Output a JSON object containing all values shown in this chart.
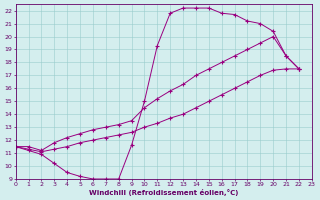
{
  "xlabel": "Windchill (Refroidissement éolien,°C)",
  "background_color": "#d4eeee",
  "line_color": "#990080",
  "xlim": [
    0,
    23
  ],
  "ylim": [
    9,
    22.5
  ],
  "xticks": [
    0,
    1,
    2,
    3,
    4,
    5,
    6,
    7,
    8,
    9,
    10,
    11,
    12,
    13,
    14,
    15,
    16,
    17,
    18,
    19,
    20,
    21,
    22,
    23
  ],
  "yticks": [
    9,
    10,
    11,
    12,
    13,
    14,
    15,
    16,
    17,
    18,
    19,
    20,
    21,
    22
  ],
  "curve1_x": [
    0,
    1,
    2,
    3,
    4,
    5,
    6,
    7,
    8,
    9,
    10,
    11,
    12,
    13,
    14,
    15,
    16,
    17,
    18,
    19,
    20,
    21,
    22
  ],
  "curve1_y": [
    11.5,
    11.2,
    10.9,
    10.2,
    9.5,
    9.2,
    9.0,
    9.0,
    9.0,
    11.6,
    15.0,
    19.3,
    21.8,
    22.2,
    22.2,
    22.2,
    21.8,
    21.7,
    21.2,
    21.0,
    20.4,
    18.5,
    17.5
  ],
  "curve2_x": [
    0,
    1,
    2,
    3,
    4,
    5,
    6,
    7,
    8,
    9,
    10,
    11,
    12,
    13,
    14,
    15,
    16,
    17,
    18,
    19,
    20,
    21,
    22
  ],
  "curve2_y": [
    11.5,
    11.5,
    11.2,
    11.8,
    12.2,
    12.5,
    12.8,
    13.0,
    13.2,
    13.5,
    14.5,
    15.2,
    15.8,
    16.3,
    17.0,
    17.5,
    18.0,
    18.5,
    19.0,
    19.5,
    20.0,
    18.5,
    17.5
  ],
  "curve3_x": [
    0,
    1,
    2,
    3,
    4,
    5,
    6,
    7,
    8,
    9,
    10,
    11,
    12,
    13,
    14,
    15,
    16,
    17,
    18,
    19,
    20,
    21,
    22
  ],
  "curve3_y": [
    11.5,
    11.3,
    11.1,
    11.3,
    11.5,
    11.8,
    12.0,
    12.2,
    12.4,
    12.6,
    13.0,
    13.3,
    13.7,
    14.0,
    14.5,
    15.0,
    15.5,
    16.0,
    16.5,
    17.0,
    17.4,
    17.5,
    17.5
  ]
}
